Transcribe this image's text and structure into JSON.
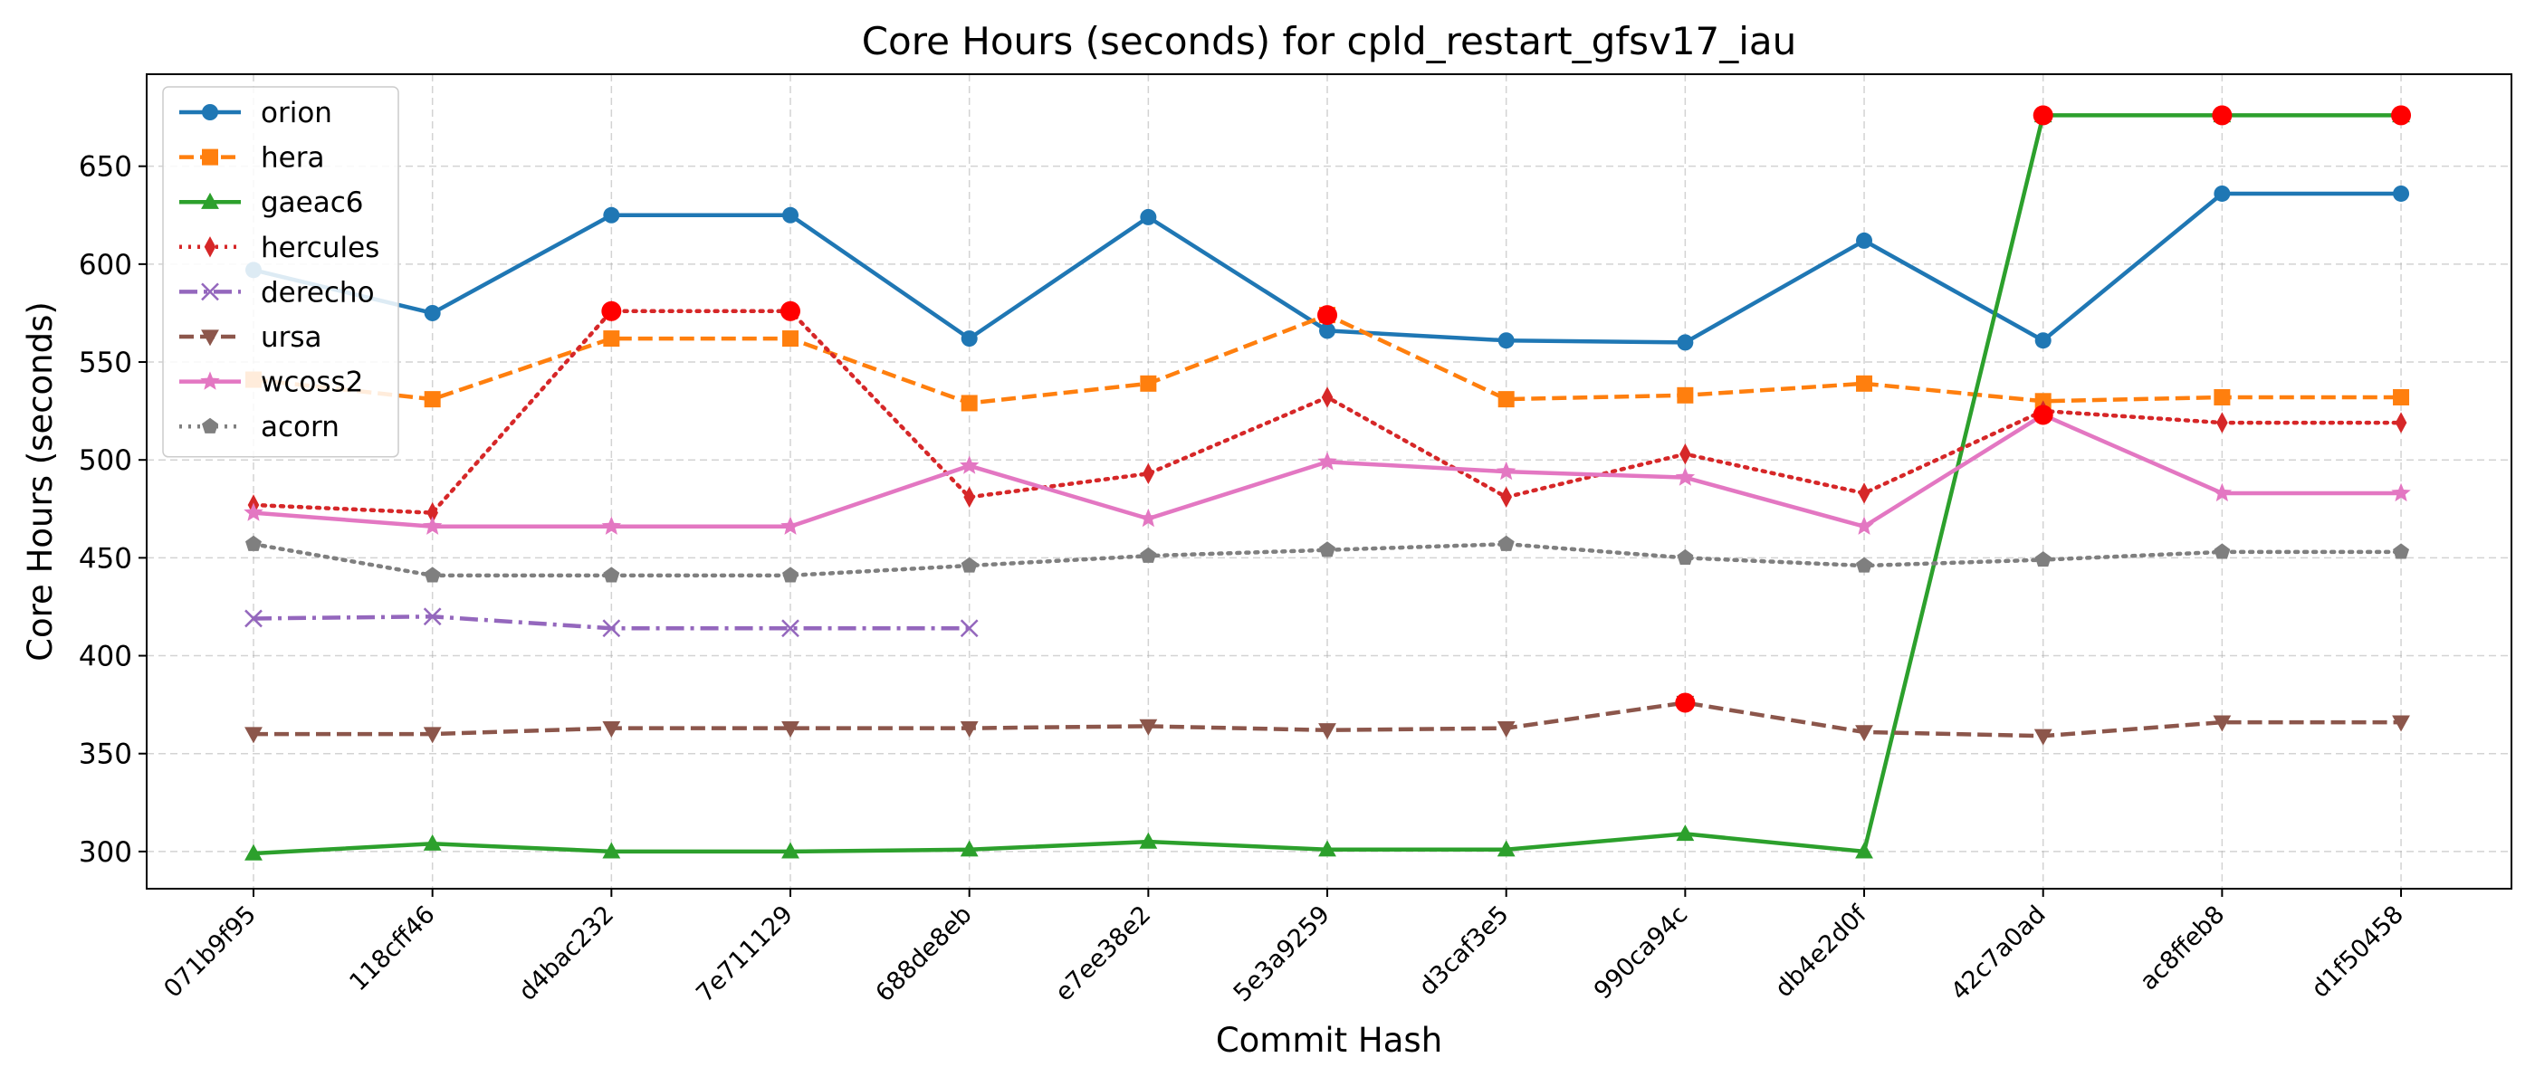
{
  "chart_data": {
    "type": "line",
    "title": "Core Hours (seconds) for cpld_restart_gfsv17_iau",
    "xlabel": "Commit Hash",
    "ylabel": "Core Hours (seconds)",
    "categories": [
      "071b9f95",
      "118cff46",
      "d4bac232",
      "7e711129",
      "688de8eb",
      "e7ee38e2",
      "5e3a9259",
      "d3caf3e5",
      "990ca94c",
      "db4e2d0f",
      "42c7a0ad",
      "ac8ffeb8",
      "d1f50458"
    ],
    "ylim": [
      281,
      697
    ],
    "yticks": [
      300,
      350,
      400,
      450,
      500,
      550,
      600,
      650
    ],
    "grid": true,
    "legend_position": "top-left",
    "series": [
      {
        "name": "orion",
        "color": "#1f77b4",
        "marker": "circle",
        "dash": "solid",
        "values": [
          597,
          575,
          625,
          625,
          562,
          624,
          566,
          561,
          560,
          612,
          561,
          636,
          636
        ]
      },
      {
        "name": "hera",
        "color": "#ff7f0e",
        "marker": "square",
        "dash": "dashed",
        "values": [
          541,
          531,
          562,
          562,
          529,
          539,
          574,
          531,
          533,
          539,
          530,
          532,
          532
        ]
      },
      {
        "name": "gaeac6",
        "color": "#2ca02c",
        "marker": "triangle-up",
        "dash": "solid",
        "values": [
          299,
          304,
          300,
          300,
          301,
          305,
          301,
          301,
          309,
          300,
          676,
          676,
          676
        ]
      },
      {
        "name": "hercules",
        "color": "#d62728",
        "marker": "thin-diamond",
        "dash": "dotted",
        "values": [
          477,
          473,
          576,
          576,
          481,
          493,
          532,
          481,
          503,
          483,
          525,
          519,
          519
        ]
      },
      {
        "name": "derecho",
        "color": "#9467bd",
        "marker": "x",
        "dash": "dashdot",
        "values": [
          419,
          420,
          414,
          414,
          414,
          null,
          null,
          null,
          null,
          null,
          null,
          null,
          null
        ]
      },
      {
        "name": "ursa",
        "color": "#8c564b",
        "marker": "triangle-down",
        "dash": "dashed",
        "values": [
          360,
          360,
          363,
          363,
          363,
          364,
          362,
          363,
          376,
          361,
          359,
          366,
          366
        ]
      },
      {
        "name": "wcoss2",
        "color": "#e377c2",
        "marker": "star",
        "dash": "solid",
        "values": [
          473,
          466,
          466,
          466,
          497,
          470,
          499,
          494,
          491,
          466,
          523,
          483,
          483
        ]
      },
      {
        "name": "acorn",
        "color": "#7f7f7f",
        "marker": "pentagon",
        "dash": "dotted",
        "values": [
          457,
          441,
          441,
          441,
          446,
          451,
          454,
          457,
          450,
          446,
          449,
          453,
          453
        ]
      }
    ],
    "highlights": {
      "color": "#ff0000",
      "points": [
        {
          "series": "hercules",
          "category": "d4bac232",
          "value": 576
        },
        {
          "series": "hercules",
          "category": "7e711129",
          "value": 576
        },
        {
          "series": "hera",
          "category": "5e3a9259",
          "value": 574
        },
        {
          "series": "ursa",
          "category": "990ca94c",
          "value": 376
        },
        {
          "series": "wcoss2",
          "category": "42c7a0ad",
          "value": 523
        },
        {
          "series": "gaeac6",
          "category": "42c7a0ad",
          "value": 676
        },
        {
          "series": "gaeac6",
          "category": "ac8ffeb8",
          "value": 676
        },
        {
          "series": "gaeac6",
          "category": "d1f50458",
          "value": 676
        }
      ]
    }
  }
}
